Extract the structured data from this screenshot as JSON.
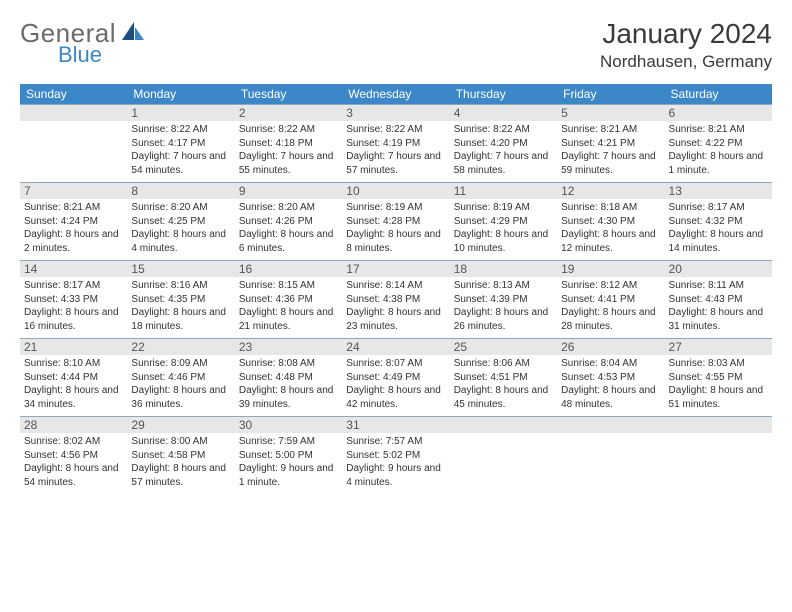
{
  "logo": {
    "part1": "General",
    "part2": "Blue"
  },
  "title": "January 2024",
  "location": "Nordhausen, Germany",
  "colors": {
    "header_bg": "#3c87c7",
    "header_text": "#ffffff",
    "daynum_bg": "#e7e7e7",
    "row_divider": "#8aa8bf",
    "logo_gray": "#6b6b6b",
    "logo_blue": "#3c87c7",
    "body_text": "#3a3a3a"
  },
  "weekdays": [
    "Sunday",
    "Monday",
    "Tuesday",
    "Wednesday",
    "Thursday",
    "Friday",
    "Saturday"
  ],
  "weeks": [
    [
      null,
      {
        "n": "1",
        "sr": "8:22 AM",
        "ss": "4:17 PM",
        "dl": "7 hours and 54 minutes."
      },
      {
        "n": "2",
        "sr": "8:22 AM",
        "ss": "4:18 PM",
        "dl": "7 hours and 55 minutes."
      },
      {
        "n": "3",
        "sr": "8:22 AM",
        "ss": "4:19 PM",
        "dl": "7 hours and 57 minutes."
      },
      {
        "n": "4",
        "sr": "8:22 AM",
        "ss": "4:20 PM",
        "dl": "7 hours and 58 minutes."
      },
      {
        "n": "5",
        "sr": "8:21 AM",
        "ss": "4:21 PM",
        "dl": "7 hours and 59 minutes."
      },
      {
        "n": "6",
        "sr": "8:21 AM",
        "ss": "4:22 PM",
        "dl": "8 hours and 1 minute."
      }
    ],
    [
      {
        "n": "7",
        "sr": "8:21 AM",
        "ss": "4:24 PM",
        "dl": "8 hours and 2 minutes."
      },
      {
        "n": "8",
        "sr": "8:20 AM",
        "ss": "4:25 PM",
        "dl": "8 hours and 4 minutes."
      },
      {
        "n": "9",
        "sr": "8:20 AM",
        "ss": "4:26 PM",
        "dl": "8 hours and 6 minutes."
      },
      {
        "n": "10",
        "sr": "8:19 AM",
        "ss": "4:28 PM",
        "dl": "8 hours and 8 minutes."
      },
      {
        "n": "11",
        "sr": "8:19 AM",
        "ss": "4:29 PM",
        "dl": "8 hours and 10 minutes."
      },
      {
        "n": "12",
        "sr": "8:18 AM",
        "ss": "4:30 PM",
        "dl": "8 hours and 12 minutes."
      },
      {
        "n": "13",
        "sr": "8:17 AM",
        "ss": "4:32 PM",
        "dl": "8 hours and 14 minutes."
      }
    ],
    [
      {
        "n": "14",
        "sr": "8:17 AM",
        "ss": "4:33 PM",
        "dl": "8 hours and 16 minutes."
      },
      {
        "n": "15",
        "sr": "8:16 AM",
        "ss": "4:35 PM",
        "dl": "8 hours and 18 minutes."
      },
      {
        "n": "16",
        "sr": "8:15 AM",
        "ss": "4:36 PM",
        "dl": "8 hours and 21 minutes."
      },
      {
        "n": "17",
        "sr": "8:14 AM",
        "ss": "4:38 PM",
        "dl": "8 hours and 23 minutes."
      },
      {
        "n": "18",
        "sr": "8:13 AM",
        "ss": "4:39 PM",
        "dl": "8 hours and 26 minutes."
      },
      {
        "n": "19",
        "sr": "8:12 AM",
        "ss": "4:41 PM",
        "dl": "8 hours and 28 minutes."
      },
      {
        "n": "20",
        "sr": "8:11 AM",
        "ss": "4:43 PM",
        "dl": "8 hours and 31 minutes."
      }
    ],
    [
      {
        "n": "21",
        "sr": "8:10 AM",
        "ss": "4:44 PM",
        "dl": "8 hours and 34 minutes."
      },
      {
        "n": "22",
        "sr": "8:09 AM",
        "ss": "4:46 PM",
        "dl": "8 hours and 36 minutes."
      },
      {
        "n": "23",
        "sr": "8:08 AM",
        "ss": "4:48 PM",
        "dl": "8 hours and 39 minutes."
      },
      {
        "n": "24",
        "sr": "8:07 AM",
        "ss": "4:49 PM",
        "dl": "8 hours and 42 minutes."
      },
      {
        "n": "25",
        "sr": "8:06 AM",
        "ss": "4:51 PM",
        "dl": "8 hours and 45 minutes."
      },
      {
        "n": "26",
        "sr": "8:04 AM",
        "ss": "4:53 PM",
        "dl": "8 hours and 48 minutes."
      },
      {
        "n": "27",
        "sr": "8:03 AM",
        "ss": "4:55 PM",
        "dl": "8 hours and 51 minutes."
      }
    ],
    [
      {
        "n": "28",
        "sr": "8:02 AM",
        "ss": "4:56 PM",
        "dl": "8 hours and 54 minutes."
      },
      {
        "n": "29",
        "sr": "8:00 AM",
        "ss": "4:58 PM",
        "dl": "8 hours and 57 minutes."
      },
      {
        "n": "30",
        "sr": "7:59 AM",
        "ss": "5:00 PM",
        "dl": "9 hours and 1 minute."
      },
      {
        "n": "31",
        "sr": "7:57 AM",
        "ss": "5:02 PM",
        "dl": "9 hours and 4 minutes."
      },
      null,
      null,
      null
    ]
  ],
  "labels": {
    "sunrise": "Sunrise:",
    "sunset": "Sunset:",
    "daylight": "Daylight:"
  }
}
